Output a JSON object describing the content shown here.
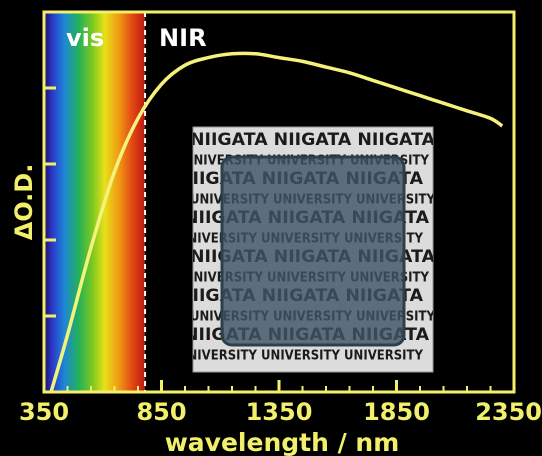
{
  "chart_data": {
    "type": "line",
    "xlabel": "wavelength / nm",
    "ylabel": "ΔO.D.",
    "xlim": [
      350,
      2350
    ],
    "x_ticks": [
      350,
      850,
      1350,
      1850,
      2350
    ],
    "x_tick_labels": [
      "350",
      "850",
      "1350",
      "1850",
      "2350"
    ],
    "ylim": [
      0,
      1
    ],
    "region_labels": [
      "vis",
      "NIR"
    ],
    "vis_nir_boundary_nm": 780,
    "series": [
      {
        "x": [
          380,
          450,
          550,
          650,
          750,
          850,
          950,
          1050,
          1150,
          1250,
          1350,
          1450,
          1550,
          1650,
          1750,
          1850,
          1950,
          2050,
          2150,
          2250,
          2300
        ],
        "y": [
          0.0,
          0.15,
          0.38,
          0.58,
          0.72,
          0.81,
          0.86,
          0.88,
          0.89,
          0.89,
          0.88,
          0.87,
          0.855,
          0.84,
          0.82,
          0.8,
          0.78,
          0.76,
          0.74,
          0.72,
          0.7
        ]
      }
    ],
    "inset_photo_text": [
      "NIIGATA",
      "UNIVERSITY"
    ],
    "colors": {
      "axis": "#f2f06a",
      "line": "#f5f27c",
      "boundary": "#ffffff",
      "background": "#000000"
    }
  }
}
